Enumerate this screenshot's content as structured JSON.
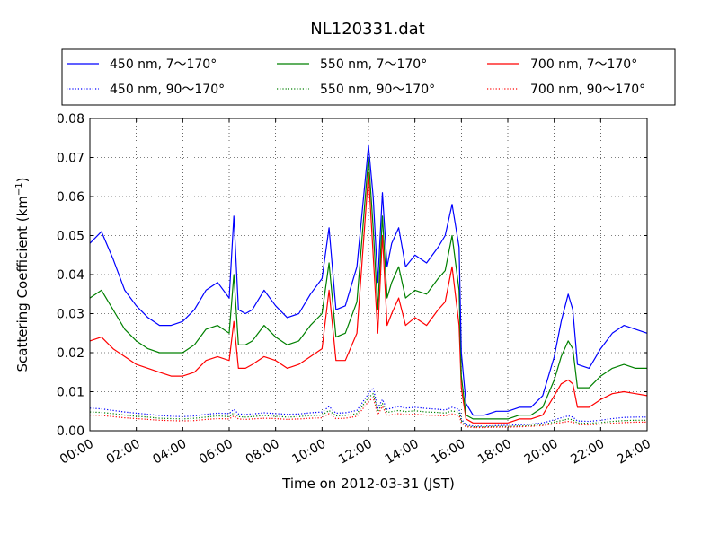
{
  "chart_data": {
    "type": "line",
    "title": "NL120331.dat",
    "xlabel": "Time on 2012-03-31 (JST)",
    "ylabel": "Scattering Coefficient (km",
    "ylabel_sup": "−1",
    "ylabel_close": ")",
    "x_unit": "hour",
    "xlim": [
      0,
      24
    ],
    "ylim": [
      0,
      0.08
    ],
    "x_ticks": [
      0,
      2,
      4,
      6,
      8,
      10,
      12,
      14,
      16,
      18,
      20,
      22,
      24
    ],
    "x_tick_labels": [
      "00:00",
      "02:00",
      "04:00",
      "06:00",
      "08:00",
      "10:00",
      "12:00",
      "14:00",
      "16:00",
      "18:00",
      "20:00",
      "22:00",
      "24:00"
    ],
    "y_ticks": [
      0,
      0.01,
      0.02,
      0.03,
      0.04,
      0.05,
      0.06,
      0.07,
      0.08
    ],
    "y_tick_labels": [
      "0.00",
      "0.01",
      "0.02",
      "0.03",
      "0.04",
      "0.05",
      "0.06",
      "0.07",
      "0.08"
    ],
    "grid": true,
    "legend_position": "top, above plot",
    "legend_columns": 3,
    "x": [
      0,
      0.5,
      1,
      1.5,
      2,
      2.5,
      3,
      3.5,
      4,
      4.5,
      5,
      5.5,
      6,
      6.2,
      6.4,
      6.7,
      7,
      7.5,
      8,
      8.5,
      9,
      9.5,
      10,
      10.3,
      10.6,
      11,
      11.5,
      12,
      12.2,
      12.4,
      12.6,
      12.8,
      13,
      13.3,
      13.6,
      14,
      14.5,
      15,
      15.3,
      15.6,
      15.9,
      16,
      16.2,
      16.5,
      17,
      17.5,
      18,
      18.5,
      19,
      19.5,
      20,
      20.3,
      20.6,
      20.8,
      21,
      21.5,
      22,
      22.5,
      23,
      23.5,
      24
    ],
    "series": [
      {
        "name": "450 nm, 7～170°",
        "color": "#0000ff",
        "style": "solid",
        "values": [
          0.048,
          0.051,
          0.044,
          0.036,
          0.032,
          0.029,
          0.027,
          0.027,
          0.028,
          0.031,
          0.036,
          0.038,
          0.034,
          0.055,
          0.031,
          0.03,
          0.031,
          0.036,
          0.032,
          0.029,
          0.03,
          0.035,
          0.039,
          0.052,
          0.031,
          0.032,
          0.042,
          0.073,
          0.06,
          0.038,
          0.061,
          0.042,
          0.048,
          0.052,
          0.042,
          0.045,
          0.043,
          0.047,
          0.05,
          0.058,
          0.047,
          0.02,
          0.007,
          0.004,
          0.004,
          0.005,
          0.005,
          0.006,
          0.006,
          0.009,
          0.019,
          0.028,
          0.035,
          0.031,
          0.017,
          0.016,
          0.021,
          0.025,
          0.027,
          0.026,
          0.025
        ]
      },
      {
        "name": "450 nm, 90～170°",
        "color": "#0000ff",
        "style": "dotted",
        "values": [
          0.0058,
          0.0056,
          0.0052,
          0.0048,
          0.0045,
          0.0042,
          0.0039,
          0.0037,
          0.0036,
          0.0038,
          0.0042,
          0.0045,
          0.0044,
          0.0055,
          0.0043,
          0.0042,
          0.0043,
          0.0046,
          0.0044,
          0.0042,
          0.0043,
          0.0046,
          0.0048,
          0.0062,
          0.0045,
          0.0046,
          0.0052,
          0.0095,
          0.011,
          0.0058,
          0.008,
          0.0055,
          0.0058,
          0.0062,
          0.0058,
          0.006,
          0.0057,
          0.0055,
          0.0053,
          0.006,
          0.0055,
          0.003,
          0.0015,
          0.0012,
          0.0012,
          0.0013,
          0.0014,
          0.0015,
          0.0017,
          0.002,
          0.0028,
          0.0033,
          0.0038,
          0.0035,
          0.0025,
          0.0024,
          0.0027,
          0.0031,
          0.0034,
          0.0035,
          0.0035
        ]
      },
      {
        "name": "550 nm, 7～170°",
        "color": "#008000",
        "style": "solid",
        "values": [
          0.034,
          0.036,
          0.031,
          0.026,
          0.023,
          0.021,
          0.02,
          0.02,
          0.02,
          0.022,
          0.026,
          0.027,
          0.025,
          0.04,
          0.022,
          0.022,
          0.023,
          0.027,
          0.024,
          0.022,
          0.023,
          0.027,
          0.03,
          0.043,
          0.024,
          0.025,
          0.033,
          0.07,
          0.052,
          0.031,
          0.055,
          0.034,
          0.038,
          0.042,
          0.034,
          0.036,
          0.035,
          0.039,
          0.041,
          0.05,
          0.036,
          0.014,
          0.004,
          0.003,
          0.003,
          0.003,
          0.003,
          0.004,
          0.004,
          0.006,
          0.013,
          0.019,
          0.023,
          0.021,
          0.011,
          0.011,
          0.014,
          0.016,
          0.017,
          0.016,
          0.016
        ]
      },
      {
        "name": "550 nm, 90～170°",
        "color": "#008000",
        "style": "dotted",
        "values": [
          0.0048,
          0.0047,
          0.0044,
          0.004,
          0.0037,
          0.0035,
          0.0032,
          0.0031,
          0.003,
          0.0032,
          0.0035,
          0.0038,
          0.0036,
          0.0046,
          0.0036,
          0.0035,
          0.0036,
          0.0039,
          0.0037,
          0.0035,
          0.0036,
          0.0039,
          0.004,
          0.0052,
          0.0038,
          0.0039,
          0.0044,
          0.0085,
          0.0095,
          0.0049,
          0.007,
          0.0047,
          0.0049,
          0.0052,
          0.0049,
          0.0051,
          0.0048,
          0.0047,
          0.0045,
          0.0051,
          0.0047,
          0.0025,
          0.0012,
          0.001,
          0.001,
          0.0011,
          0.0011,
          0.0012,
          0.0013,
          0.0016,
          0.0022,
          0.0026,
          0.003,
          0.0028,
          0.002,
          0.0019,
          0.0021,
          0.0024,
          0.0026,
          0.0027,
          0.0027
        ]
      },
      {
        "name": "700 nm, 7～170°",
        "color": "#ff0000",
        "style": "solid",
        "values": [
          0.023,
          0.024,
          0.021,
          0.019,
          0.017,
          0.016,
          0.015,
          0.014,
          0.014,
          0.015,
          0.018,
          0.019,
          0.018,
          0.028,
          0.016,
          0.016,
          0.017,
          0.019,
          0.018,
          0.016,
          0.017,
          0.019,
          0.021,
          0.036,
          0.018,
          0.018,
          0.025,
          0.066,
          0.045,
          0.025,
          0.05,
          0.027,
          0.03,
          0.034,
          0.027,
          0.029,
          0.027,
          0.031,
          0.033,
          0.042,
          0.027,
          0.011,
          0.003,
          0.002,
          0.002,
          0.002,
          0.002,
          0.003,
          0.003,
          0.004,
          0.009,
          0.012,
          0.013,
          0.012,
          0.006,
          0.006,
          0.008,
          0.0095,
          0.01,
          0.0095,
          0.009
        ]
      },
      {
        "name": "700 nm, 90～170°",
        "color": "#ff0000",
        "style": "dotted",
        "values": [
          0.004,
          0.0039,
          0.0036,
          0.0033,
          0.0031,
          0.0029,
          0.0027,
          0.0026,
          0.0025,
          0.0026,
          0.0029,
          0.0031,
          0.003,
          0.0038,
          0.003,
          0.0029,
          0.003,
          0.0032,
          0.0031,
          0.0029,
          0.003,
          0.0032,
          0.0033,
          0.0044,
          0.0031,
          0.0032,
          0.0037,
          0.0075,
          0.0085,
          0.0041,
          0.0062,
          0.0039,
          0.0041,
          0.0044,
          0.0041,
          0.0042,
          0.004,
          0.0039,
          0.0038,
          0.0043,
          0.0039,
          0.002,
          0.001,
          0.0008,
          0.0008,
          0.0009,
          0.0009,
          0.001,
          0.0011,
          0.0013,
          0.0018,
          0.0021,
          0.0024,
          0.0022,
          0.0016,
          0.0015,
          0.0017,
          0.0019,
          0.0021,
          0.0022,
          0.0022
        ]
      }
    ]
  }
}
